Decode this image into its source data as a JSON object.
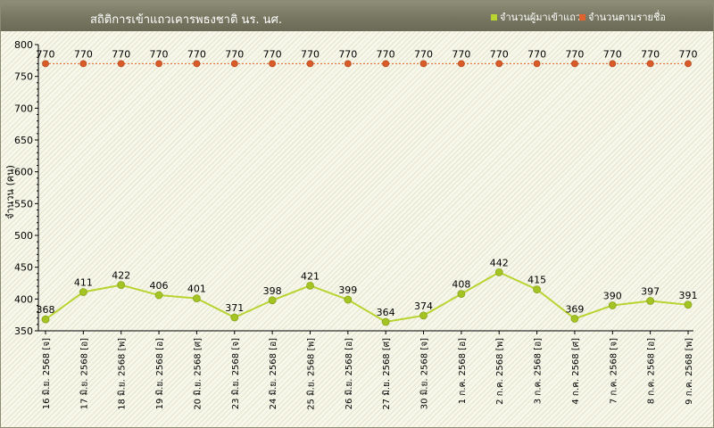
{
  "header": {
    "title": "สถิติการเข้าแถวเคารพธงชาติ นร. นศ.",
    "background": "#777762"
  },
  "colors": {
    "present": "#b8d431",
    "present_point": "#a4c424",
    "enrolled": "#e0622e",
    "enrolled_point": "#d95b2a",
    "plot_background": "#f4f4e6"
  },
  "chart_data": {
    "type": "line",
    "title": "สถิติการเข้าแถวเคารพธงชาติ นร. นศ.",
    "xlabel": "",
    "ylabel": "จำนวน (คน)",
    "ylim": [
      350,
      800
    ],
    "yticks": [
      350,
      400,
      450,
      500,
      550,
      600,
      650,
      700,
      750,
      800
    ],
    "grid": false,
    "legend_position": "top-right",
    "categories": [
      "16 มิ.ย. 2568 [จ]",
      "17 มิ.ย. 2568 [อ]",
      "18 มิ.ย. 2568 [พ]",
      "19 มิ.ย. 2568 [อ]",
      "20 มิ.ย. 2568 [ศ]",
      "23 มิ.ย. 2568 [จ]",
      "24 มิ.ย. 2568 [อ]",
      "25 มิ.ย. 2568 [พ]",
      "26 มิ.ย. 2568 [อ]",
      "27 มิ.ย. 2568 [ศ]",
      "30 มิ.ย. 2568 [จ]",
      "1 ก.ค. 2568 [อ]",
      "2 ก.ค. 2568 [พ]",
      "3 ก.ค. 2568 [อ]",
      "4 ก.ค. 2568 [ศ]",
      "7 ก.ค. 2568 [จ]",
      "8 ก.ค. 2568 [อ]",
      "9 ก.ค. 2568 [พ]"
    ],
    "series": [
      {
        "name": "จำนวนผู้มาเข้าแถว",
        "color": "#b8d431",
        "values": [
          368,
          411,
          422,
          406,
          401,
          371,
          398,
          421,
          399,
          364,
          374,
          408,
          442,
          415,
          369,
          390,
          397,
          391
        ]
      },
      {
        "name": "จำนวนตามรายชื่อ",
        "color": "#e0622e",
        "values": [
          770,
          770,
          770,
          770,
          770,
          770,
          770,
          770,
          770,
          770,
          770,
          770,
          770,
          770,
          770,
          770,
          770,
          770
        ]
      }
    ]
  }
}
